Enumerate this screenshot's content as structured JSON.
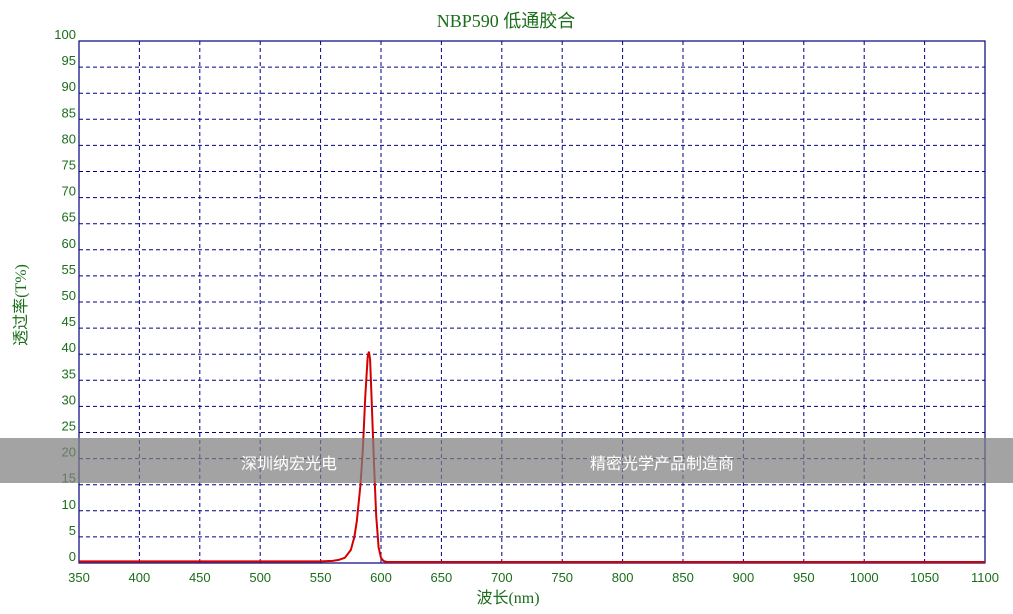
{
  "chart_data": {
    "type": "line",
    "title": "NBP590 低通胶合",
    "xlabel": "波长(nm)",
    "ylabel": "透过率(T%)",
    "xlim": [
      350,
      1100
    ],
    "ylim": [
      0,
      100
    ],
    "xticks": [
      350,
      400,
      450,
      500,
      550,
      600,
      650,
      700,
      750,
      800,
      850,
      900,
      950,
      1000,
      1050,
      1100
    ],
    "yticks": [
      0,
      5,
      10,
      15,
      20,
      25,
      30,
      35,
      40,
      45,
      50,
      55,
      60,
      65,
      70,
      75,
      80,
      85,
      90,
      95,
      100
    ],
    "grid": true,
    "colors": {
      "line": "#d40000",
      "grid": "#000080",
      "frame": "#000080",
      "text": "#1a6e1a"
    },
    "series": [
      {
        "x": [
          350,
          400,
          450,
          500,
          550,
          560,
          565,
          570,
          575,
          578,
          580,
          583,
          585,
          587,
          589,
          590,
          591,
          592,
          594,
          596,
          598,
          600,
          602,
          605,
          650,
          700,
          800,
          900,
          1000,
          1100
        ],
        "y": [
          0.3,
          0.3,
          0.3,
          0.3,
          0.3,
          0.4,
          0.6,
          1,
          2.5,
          5,
          8,
          15,
          22,
          32,
          39.5,
          40.5,
          39,
          33,
          20,
          9,
          3,
          1,
          0.4,
          0.2,
          0.2,
          0.2,
          0.2,
          0.2,
          0.2,
          0.2
        ]
      }
    ]
  },
  "watermark": {
    "left": "深圳纳宏光电",
    "right": "精密光学产品制造商"
  }
}
